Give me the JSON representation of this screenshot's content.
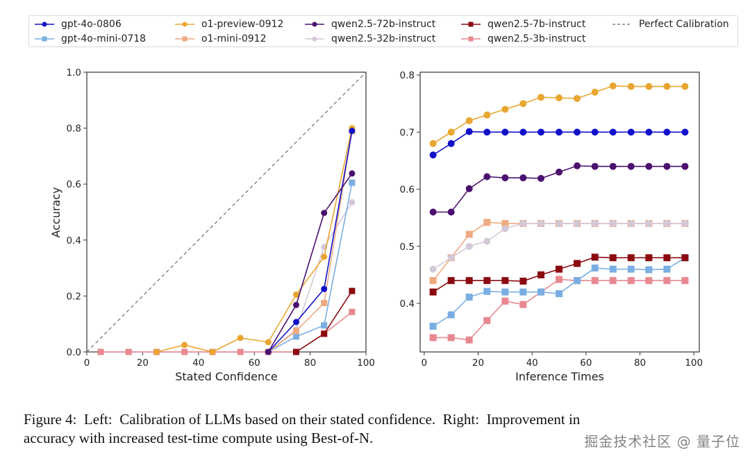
{
  "legend": {
    "items": [
      {
        "label": "gpt-4o-0806",
        "color": "#1010c8",
        "marker": "circle",
        "dash": false
      },
      {
        "label": "gpt-4o-mini-0718",
        "color": "#7aaee2",
        "marker": "square",
        "dash": false
      },
      {
        "label": "o1-preview-0912",
        "color": "#e8a630",
        "marker": "circle",
        "dash": false
      },
      {
        "label": "o1-mini-0912",
        "color": "#eeaa80",
        "marker": "square",
        "dash": false
      },
      {
        "label": "qwen2.5-72b-instruct",
        "color": "#4a1070",
        "marker": "circle",
        "dash": false
      },
      {
        "label": "qwen2.5-32b-instruct",
        "color": "#d4c8d8",
        "marker": "circle",
        "dash": false
      },
      {
        "label": "qwen2.5-7b-instruct",
        "color": "#8b0a10",
        "marker": "square",
        "dash": false
      },
      {
        "label": "qwen2.5-3b-instruct",
        "color": "#e88890",
        "marker": "square",
        "dash": false
      },
      {
        "label": "Perfect Calibration",
        "color": "#808080",
        "marker": "none",
        "dash": true
      }
    ]
  },
  "chart_data": [
    {
      "type": "line",
      "title": "",
      "xlabel": "Stated Confidence",
      "ylabel": "Accuracy",
      "xlim": [
        0,
        100
      ],
      "ylim": [
        0,
        1.0
      ],
      "xticks": [
        0,
        20,
        40,
        60,
        80,
        100
      ],
      "yticks": [
        0.0,
        0.2,
        0.4,
        0.6,
        0.8,
        1.0
      ],
      "ytick_labels": [
        "0.0",
        "0.2",
        "0.4",
        "0.6",
        "0.8",
        "1.0"
      ],
      "grid": false,
      "reference_line": {
        "name": "Perfect Calibration",
        "points": [
          [
            0,
            0
          ],
          [
            100,
            1.0
          ]
        ]
      },
      "series": [
        {
          "name": "qwen2.5-3b-instruct",
          "x": [
            5,
            15,
            25,
            35,
            45,
            55,
            65,
            75,
            85,
            95
          ],
          "y": [
            0,
            0,
            0,
            0,
            0,
            0,
            0,
            0,
            0.065,
            0.143
          ]
        },
        {
          "name": "qwen2.5-7b-instruct",
          "x": [
            75,
            85,
            95
          ],
          "y": [
            0,
            0.065,
            0.218
          ]
        },
        {
          "name": "qwen2.5-32b-instruct",
          "x": [
            65,
            75,
            85,
            95
          ],
          "y": [
            0,
            0.08,
            0.375,
            0.535
          ]
        },
        {
          "name": "gpt-4o-mini-0718",
          "x": [
            65,
            75,
            85,
            95
          ],
          "y": [
            0,
            0.055,
            0.095,
            0.605
          ]
        },
        {
          "name": "o1-mini-0912",
          "x": [
            65,
            75,
            85,
            95
          ],
          "y": [
            0,
            0.075,
            0.175,
            0.79
          ]
        },
        {
          "name": "o1-preview-0912",
          "x": [
            25,
            35,
            45,
            55,
            65,
            75,
            85,
            95
          ],
          "y": [
            0,
            0.025,
            0,
            0.05,
            0.035,
            0.205,
            0.34,
            0.8
          ]
        },
        {
          "name": "gpt-4o-0806",
          "x": [
            65,
            75,
            85,
            95
          ],
          "y": [
            0,
            0.107,
            0.225,
            0.79
          ]
        },
        {
          "name": "qwen2.5-72b-instruct",
          "x": [
            65,
            75,
            85,
            95
          ],
          "y": [
            0,
            0.168,
            0.497,
            0.638
          ]
        }
      ]
    },
    {
      "type": "line",
      "title": "",
      "xlabel": "Inference Times",
      "ylabel": "",
      "xlim": [
        -1.5,
        102
      ],
      "ylim": [
        0.315,
        0.805
      ],
      "xticks": [
        0,
        20,
        40,
        60,
        80,
        100
      ],
      "yticks": [
        0.4,
        0.5,
        0.6,
        0.7,
        0.8
      ],
      "ytick_labels": [
        "0.4",
        "0.5",
        "0.6",
        "0.7",
        "0.8"
      ],
      "grid": false,
      "x": [
        3.3,
        10,
        16.7,
        23.3,
        30,
        36.7,
        43.3,
        50,
        56.7,
        63.3,
        70,
        76.7,
        83.3,
        90,
        96.7
      ],
      "series": [
        {
          "name": "qwen2.5-3b-instruct",
          "y": [
            0.34,
            0.34,
            0.336,
            0.37,
            0.404,
            0.398,
            0.42,
            0.442,
            0.44,
            0.44,
            0.44,
            0.44,
            0.44,
            0.44,
            0.44
          ]
        },
        {
          "name": "gpt-4o-mini-0718",
          "y": [
            0.36,
            0.38,
            0.411,
            0.421,
            0.42,
            0.42,
            0.42,
            0.417,
            0.44,
            0.462,
            0.46,
            0.46,
            0.459,
            0.46,
            0.48
          ]
        },
        {
          "name": "qwen2.5-7b-instruct",
          "y": [
            0.42,
            0.44,
            0.44,
            0.44,
            0.44,
            0.439,
            0.45,
            0.46,
            0.47,
            0.481,
            0.48,
            0.48,
            0.48,
            0.48,
            0.48
          ]
        },
        {
          "name": "o1-mini-0912",
          "y": [
            0.44,
            0.48,
            0.521,
            0.542,
            0.54,
            0.54,
            0.54,
            0.54,
            0.54,
            0.54,
            0.54,
            0.54,
            0.54,
            0.54,
            0.54
          ]
        },
        {
          "name": "qwen2.5-32b-instruct",
          "y": [
            0.46,
            0.48,
            0.5,
            0.509,
            0.531,
            0.54,
            0.54,
            0.54,
            0.54,
            0.54,
            0.54,
            0.54,
            0.54,
            0.54,
            0.54
          ]
        },
        {
          "name": "qwen2.5-72b-instruct",
          "y": [
            0.56,
            0.56,
            0.601,
            0.622,
            0.62,
            0.62,
            0.619,
            0.63,
            0.641,
            0.64,
            0.64,
            0.64,
            0.64,
            0.64,
            0.64
          ]
        },
        {
          "name": "gpt-4o-0806",
          "y": [
            0.66,
            0.68,
            0.701,
            0.7,
            0.7,
            0.7,
            0.7,
            0.7,
            0.7,
            0.7,
            0.7,
            0.7,
            0.7,
            0.7,
            0.7
          ]
        },
        {
          "name": "o1-preview-0912",
          "y": [
            0.68,
            0.7,
            0.72,
            0.73,
            0.74,
            0.75,
            0.761,
            0.76,
            0.759,
            0.77,
            0.781,
            0.78,
            0.78,
            0.78,
            0.78
          ]
        }
      ]
    }
  ],
  "caption": {
    "line1": "Figure 4:  Left:  Calibration of LLMs based on their stated confidence.  Right:  Improvement in",
    "line2": "accuracy with increased test-time compute using Best-of-N."
  },
  "watermark": "掘金技术社区 @ 量子位"
}
